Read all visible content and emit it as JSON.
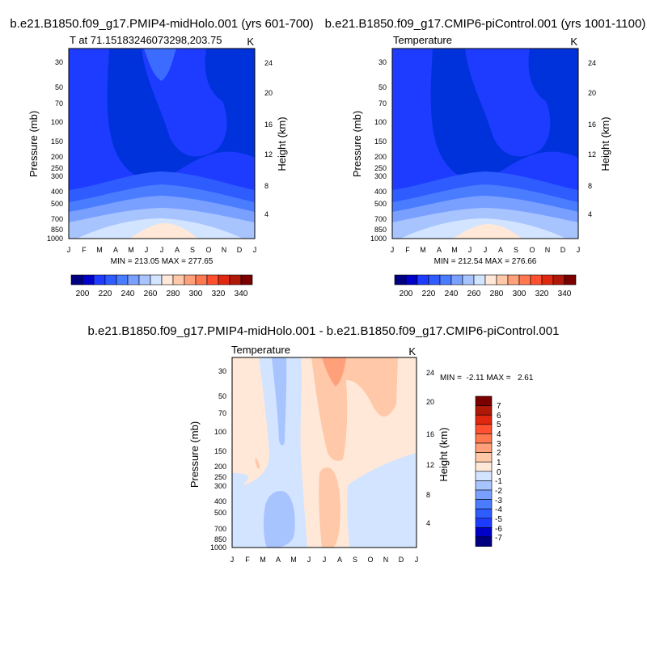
{
  "colors": {
    "abs_levels": [
      "#000080",
      "#0000c8",
      "#1e3cff",
      "#2e5cff",
      "#4a7cff",
      "#7aa0ff",
      "#a8c4ff",
      "#d2e4ff",
      "#ffe8d8",
      "#ffc8a8",
      "#ffa07a",
      "#ff7850",
      "#ff5030",
      "#e02810",
      "#b01808",
      "#7a0000"
    ],
    "diff_levels": [
      "#000080",
      "#0000c8",
      "#1e3cff",
      "#2e5cff",
      "#4a7cff",
      "#7aa0ff",
      "#a8c4ff",
      "#d2e4ff",
      "#ffe8d8",
      "#ffc8a8",
      "#ffa07a",
      "#ff7850",
      "#ff5030",
      "#e02810",
      "#b01808",
      "#7a0000"
    ]
  },
  "chart_data": [
    {
      "type": "heatmap",
      "panel_title": "b.e21.B1850.f09_g17.PMIP4-midHolo.001 (yrs 601-700)",
      "left_label": "T at 71.15183246073298,203.75",
      "units_label": "K",
      "ylabel": "Pressure (mb)",
      "ylabel_right": "Height (km)",
      "x_ticks": [
        "J",
        "F",
        "M",
        "A",
        "M",
        "J",
        "J",
        "A",
        "S",
        "O",
        "N",
        "D",
        "J"
      ],
      "y_ticks": [
        "30",
        "50",
        "70",
        "100",
        "150",
        "200",
        "250",
        "300",
        "400",
        "500",
        "700",
        "850",
        "1000"
      ],
      "y_right_ticks": [
        "24",
        "20",
        "16",
        "12",
        "8",
        "4"
      ],
      "stats": "MIN = 213.05 MAX = 277.65",
      "colorbar_ticks": [
        "200",
        "220",
        "240",
        "260",
        "280",
        "300",
        "320",
        "340"
      ]
    },
    {
      "type": "heatmap",
      "panel_title": "b.e21.B1850.f09_g17.CMIP6-piControl.001 (yrs 1001-1100)",
      "left_label": "Temperature",
      "units_label": "K",
      "ylabel": "Pressure (mb)",
      "ylabel_right": "Height (km)",
      "x_ticks": [
        "J",
        "F",
        "M",
        "A",
        "M",
        "J",
        "J",
        "A",
        "S",
        "O",
        "N",
        "D",
        "J"
      ],
      "y_ticks": [
        "30",
        "50",
        "70",
        "100",
        "150",
        "200",
        "250",
        "300",
        "400",
        "500",
        "700",
        "850",
        "1000"
      ],
      "y_right_ticks": [
        "24",
        "20",
        "16",
        "12",
        "8",
        "4"
      ],
      "stats": "MIN = 212.54 MAX = 276.66",
      "colorbar_ticks": [
        "200",
        "220",
        "240",
        "260",
        "280",
        "300",
        "320",
        "340"
      ]
    },
    {
      "type": "heatmap",
      "panel_title": "b.e21.B1850.f09_g17.PMIP4-midHolo.001 - b.e21.B1850.f09_g17.CMIP6-piControl.001",
      "left_label": "Temperature",
      "units_label": "K",
      "ylabel": "Pressure (mb)",
      "ylabel_right": "Height (km)",
      "x_ticks": [
        "J",
        "F",
        "M",
        "A",
        "M",
        "J",
        "J",
        "A",
        "S",
        "O",
        "N",
        "D",
        "J"
      ],
      "y_ticks": [
        "30",
        "50",
        "70",
        "100",
        "150",
        "200",
        "250",
        "300",
        "400",
        "500",
        "700",
        "850",
        "1000"
      ],
      "y_right_ticks": [
        "24",
        "20",
        "16",
        "12",
        "8",
        "4"
      ],
      "stats": "MIN =  -2.11 MAX =   2.61",
      "colorbar_ticks": [
        "7",
        "6",
        "5",
        "4",
        "3",
        "2",
        "1",
        "0",
        "-1",
        "-2",
        "-3",
        "-4",
        "-5",
        "-6",
        "-7"
      ]
    }
  ]
}
